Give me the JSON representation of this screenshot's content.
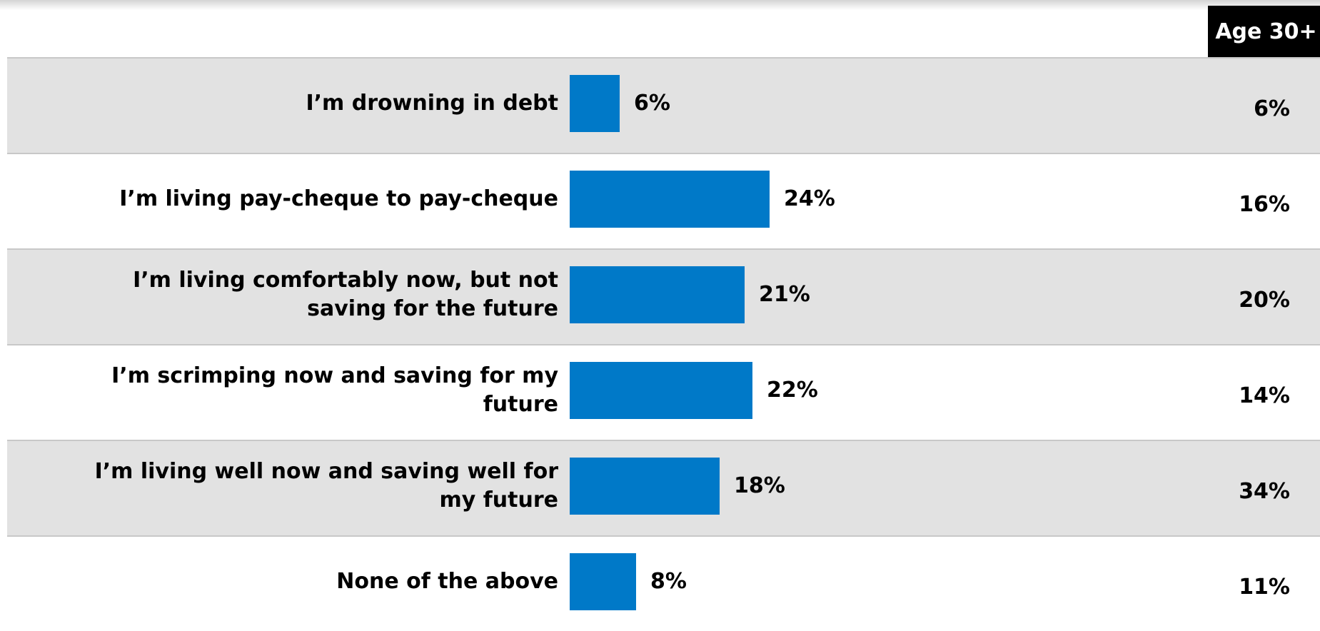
{
  "chart_data": {
    "type": "bar",
    "orientation": "horizontal",
    "categories": [
      "I’m drowning in debt",
      "I’m living pay-cheque to pay-cheque",
      "I’m living comfortably now, but not saving for the future",
      "I’m scrimping now and saving for my future",
      "I’m living well now and saving well for my future",
      "None of the above"
    ],
    "series": [
      {
        "values": [
          6,
          24,
          21,
          22,
          18,
          8
        ],
        "labels": [
          "6%",
          "24%",
          "21%",
          "22%",
          "18%",
          "8%"
        ],
        "color": "#0079c8"
      },
      {
        "name": "Age 30+",
        "values": [
          6,
          16,
          20,
          14,
          34,
          11
        ],
        "labels": [
          "6%",
          "16%",
          "20%",
          "14%",
          "34%",
          "11%"
        ]
      }
    ],
    "unit": "%",
    "row_shading": "alternating grey",
    "shade_color": "#e2e2e2"
  }
}
